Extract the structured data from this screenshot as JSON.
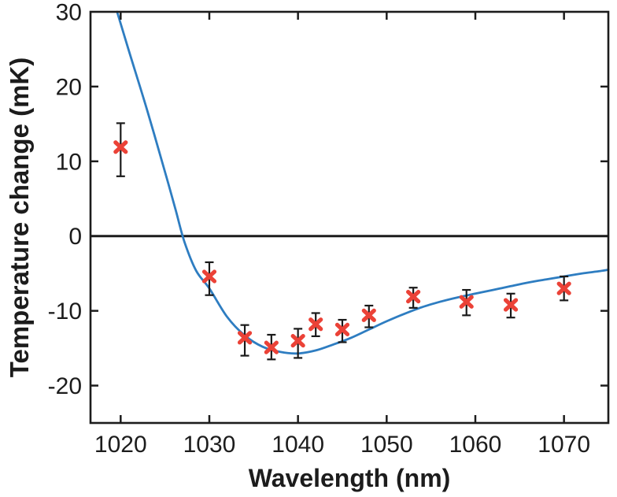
{
  "chart_data": {
    "type": "scatter",
    "title": "",
    "xlabel": "Wavelength (nm)",
    "ylabel": "Temperature change (mK)",
    "xlim": [
      1016.6,
      1075.0
    ],
    "ylim": [
      -25,
      30
    ],
    "x_ticks": [
      1020,
      1030,
      1040,
      1050,
      1060,
      1070
    ],
    "y_ticks": [
      -20,
      -10,
      0,
      10,
      20,
      30
    ],
    "grid": false,
    "zero_line": true,
    "legend": "none",
    "colors": {
      "marker": "#eb4237",
      "curve": "#2e7dc1",
      "error_bar": "#1a1a1a",
      "axis": "#1c1c1c",
      "background": "#ffffff"
    },
    "series": [
      {
        "name": "measured-temperature-change",
        "type": "scatter",
        "marker": "x",
        "points": [
          {
            "x": 1020,
            "y": 11.9,
            "lo": 8.0,
            "hi": 15.1
          },
          {
            "x": 1030,
            "y": -5.4,
            "lo": -7.9,
            "hi": -3.5
          },
          {
            "x": 1034,
            "y": -13.6,
            "lo": -16.0,
            "hi": -11.9
          },
          {
            "x": 1037,
            "y": -14.9,
            "lo": -16.5,
            "hi": -13.2
          },
          {
            "x": 1040,
            "y": -14.0,
            "lo": -16.3,
            "hi": -12.4
          },
          {
            "x": 1042,
            "y": -11.8,
            "lo": -13.4,
            "hi": -10.3
          },
          {
            "x": 1045,
            "y": -12.5,
            "lo": -14.2,
            "hi": -11.2
          },
          {
            "x": 1048,
            "y": -10.6,
            "lo": -12.2,
            "hi": -9.3
          },
          {
            "x": 1053,
            "y": -8.1,
            "lo": -9.6,
            "hi": -6.9
          },
          {
            "x": 1059,
            "y": -8.8,
            "lo": -10.6,
            "hi": -7.2
          },
          {
            "x": 1064,
            "y": -9.2,
            "lo": -10.9,
            "hi": -7.7
          },
          {
            "x": 1070,
            "y": -7.0,
            "lo": -8.6,
            "hi": -5.4
          }
        ]
      },
      {
        "name": "theory-curve",
        "type": "line",
        "x": [
          1019.6,
          1021,
          1023,
          1025,
          1026.2,
          1027.2,
          1028.5,
          1030,
          1032,
          1034,
          1036,
          1038,
          1040,
          1042,
          1044,
          1046,
          1048,
          1050,
          1052,
          1054,
          1056,
          1058,
          1060,
          1062,
          1064,
          1066,
          1068,
          1070,
          1072,
          1074,
          1075.0
        ],
        "y": [
          30,
          24.5,
          16.8,
          8.6,
          3.5,
          -0.8,
          -4.6,
          -7.0,
          -10.8,
          -13.3,
          -14.8,
          -15.5,
          -15.7,
          -15.3,
          -14.5,
          -13.6,
          -12.5,
          -11.4,
          -10.4,
          -9.5,
          -8.8,
          -8.2,
          -7.7,
          -7.2,
          -6.7,
          -6.2,
          -5.8,
          -5.4,
          -5.0,
          -4.7,
          -4.5
        ]
      }
    ]
  }
}
